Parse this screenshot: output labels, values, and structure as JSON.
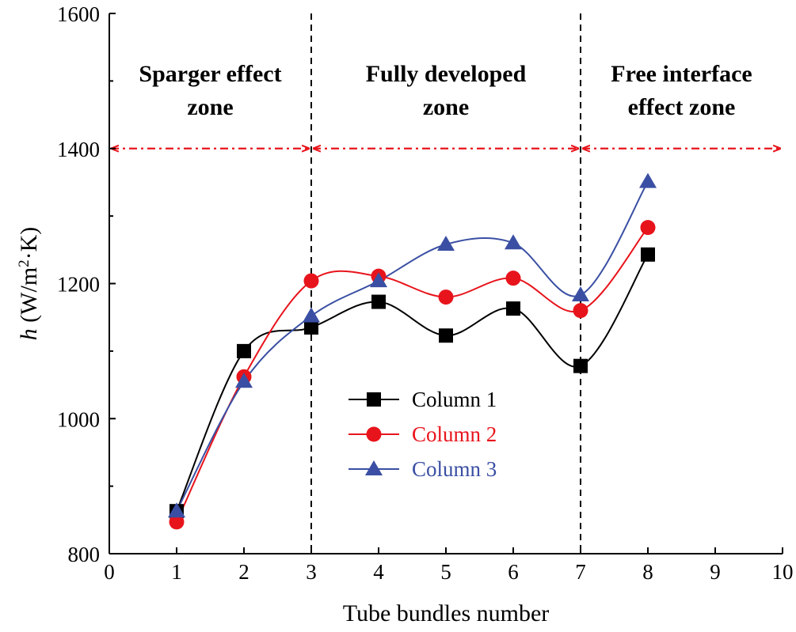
{
  "chart_data": {
    "type": "line",
    "xlabel": "Tube bundles number",
    "ylabel": {
      "italic": "h",
      "units": " (W/m",
      "sup": "2",
      "units_end": "·K)"
    },
    "xlim": [
      0,
      10
    ],
    "ylim": [
      800,
      1600
    ],
    "x_ticks": [
      0,
      1,
      2,
      3,
      4,
      5,
      6,
      7,
      8,
      9,
      10
    ],
    "y_ticks": [
      800,
      1000,
      1200,
      1400,
      1600
    ],
    "y_minor_ticks": [
      900,
      1100,
      1300,
      1500
    ],
    "grid": false,
    "legend_position": "lower-center",
    "zone_boundaries": [
      3,
      7
    ],
    "zone_arrow_y": 1400,
    "zones": [
      {
        "lines": [
          "Sparger effect",
          "zone"
        ],
        "x_center": 1.5
      },
      {
        "lines": [
          "Fully developed",
          "zone"
        ],
        "x_center": 5
      },
      {
        "lines": [
          "Free interface",
          "effect zone"
        ],
        "x_center": 8.5
      }
    ],
    "series": [
      {
        "name": "Column 1",
        "color": "#000000",
        "marker": "square",
        "x": [
          1,
          2,
          3,
          4,
          5,
          6,
          7,
          8
        ],
        "values": [
          863,
          1100,
          1135,
          1173,
          1123,
          1163,
          1078,
          1243
        ]
      },
      {
        "name": "Column 2",
        "color": "#e8141c",
        "marker": "circle",
        "x": [
          1,
          2,
          3,
          4,
          5,
          6,
          7,
          8
        ],
        "values": [
          847,
          1062,
          1204,
          1211,
          1180,
          1208,
          1160,
          1283
        ]
      },
      {
        "name": "Column 3",
        "color": "#3a4fa3",
        "marker": "triangle",
        "x": [
          1,
          2,
          3,
          4,
          5,
          6,
          7,
          8
        ],
        "values": [
          863,
          1055,
          1152,
          1204,
          1258,
          1260,
          1183,
          1351
        ]
      }
    ],
    "colors": {
      "axis": "#000000",
      "zone_arrow": "#e8141c",
      "divider": "#000000"
    }
  }
}
